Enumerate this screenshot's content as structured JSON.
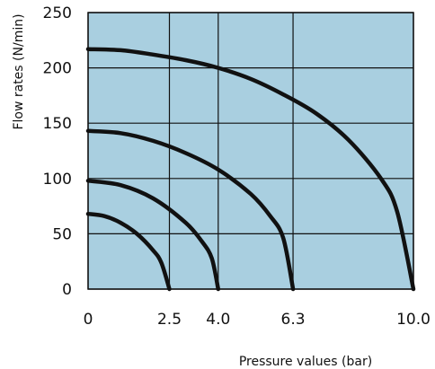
{
  "chart_data": {
    "type": "line",
    "title": "",
    "xlabel": "Pressure values (bar)",
    "ylabel": "Flow rates (N/min)",
    "x_ticks": [
      "0",
      "2.5",
      "4.0",
      "6.3",
      "10.0"
    ],
    "y_ticks": [
      "0",
      "50",
      "100",
      "150",
      "200",
      "250"
    ],
    "xlim": [
      0,
      10
    ],
    "ylim": [
      0,
      250
    ],
    "grid": true,
    "background_color": "#a9cfe0",
    "line_color": "#111111",
    "series": [
      {
        "x": [
          0,
          0.5,
          1.0,
          1.5,
          2.0,
          2.25,
          2.5
        ],
        "y": [
          68,
          66,
          60,
          50,
          35,
          24,
          0
        ]
      },
      {
        "x": [
          0,
          1.0,
          2.0,
          3.0,
          3.5,
          3.8,
          4.0
        ],
        "y": [
          98,
          94,
          82,
          60,
          43,
          28,
          0
        ]
      },
      {
        "x": [
          0,
          1.0,
          2.0,
          3.0,
          4.0,
          5.0,
          5.6,
          6.0,
          6.3
        ],
        "y": [
          143,
          141,
          134,
          123,
          108,
          86,
          66,
          46,
          0
        ]
      },
      {
        "x": [
          0,
          1.0,
          2.0,
          3.0,
          4.0,
          5.0,
          6.0,
          7.0,
          8.0,
          9.0,
          9.5,
          10.0
        ],
        "y": [
          217,
          216,
          212,
          207,
          200,
          190,
          176,
          159,
          135,
          100,
          70,
          0
        ]
      }
    ]
  }
}
